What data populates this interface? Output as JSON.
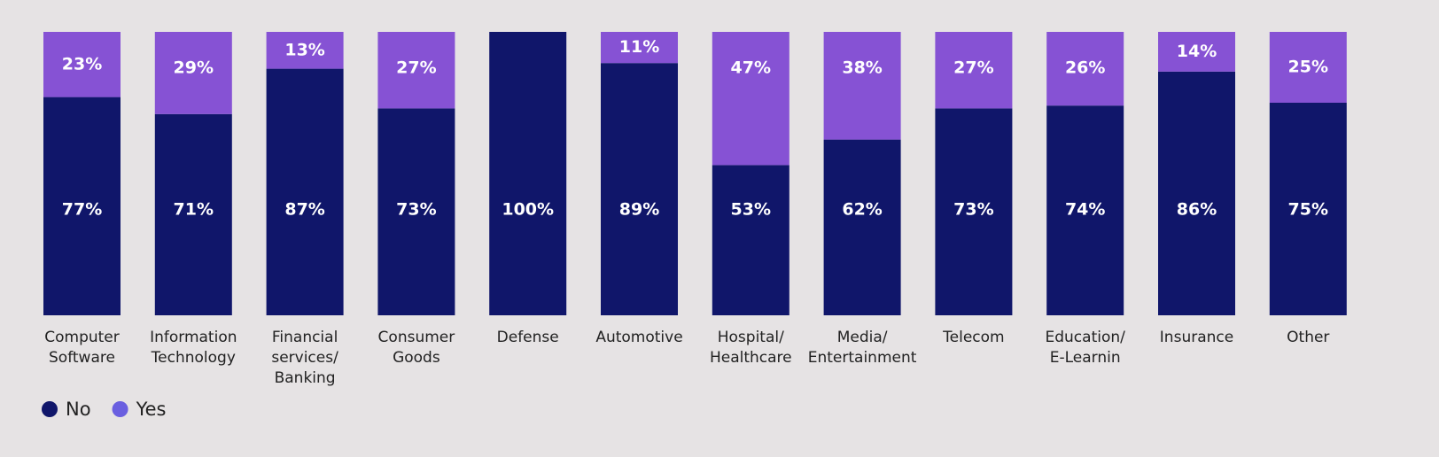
{
  "chart_data": {
    "type": "stacked_bar",
    "categories": [
      "Computer\nSoftware",
      "Information\nTechnology",
      "Financial\nservices/\nBanking",
      "Consumer\nGoods",
      "Defense",
      "Automotive",
      "Hospital/\nHealthcare",
      "Media/\nEntertainment",
      "Telecom",
      "Education/\nE-Learnin",
      "Insurance",
      "Other"
    ],
    "series": [
      {
        "name": "No",
        "color": "#10166a",
        "legend_color": "#10166a",
        "values": [
          77,
          71,
          87,
          73,
          100,
          89,
          53,
          62,
          73,
          74,
          86,
          75
        ],
        "value_labels": [
          "77%",
          "71%",
          "87%",
          "73%",
          "100%",
          "89%",
          "53%",
          "62%",
          "73%",
          "74%",
          "86%",
          "75%"
        ]
      },
      {
        "name": "Yes",
        "color": "#8652d4",
        "legend_color": "#6a5fe0",
        "values": [
          23,
          29,
          13,
          27,
          0,
          11,
          47,
          38,
          27,
          26,
          14,
          25
        ],
        "value_labels": [
          "23%",
          "29%",
          "13%",
          "27%",
          null,
          "11%",
          "47%",
          "38%",
          "27%",
          "26%",
          "14%",
          "25%"
        ]
      }
    ],
    "ylim": [
      0,
      100
    ],
    "legend": "bottom-left"
  }
}
